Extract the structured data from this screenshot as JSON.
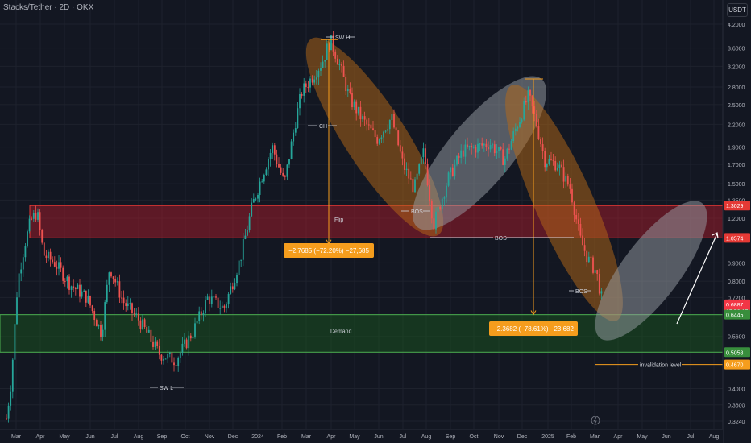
{
  "header": {
    "title": "Stacks/Tether · 2D · OKX",
    "unit": "USDT"
  },
  "colors": {
    "background": "#131722",
    "grid": "#1e222d",
    "candle_up": "#26a69a",
    "candle_down": "#ef5350",
    "supply_zone": "#b71c2c",
    "demand_zone": "#1b5e20",
    "orange": "#f59d1d",
    "label_green": "#388e3c",
    "label_red": "#e53935",
    "price_badge": "#f23645"
  },
  "chart_data": {
    "type": "candlestick",
    "x_ticks": [
      "Mar",
      "Apr",
      "May",
      "Jun",
      "Jul",
      "Aug",
      "Sep",
      "Oct",
      "Nov",
      "Dec",
      "2024",
      "Feb",
      "Mar",
      "Apr",
      "May",
      "Jun",
      "Jul",
      "Aug",
      "Sep",
      "Oct",
      "Nov",
      "Dec",
      "2025",
      "Feb",
      "Mar",
      "Apr",
      "May",
      "Jun",
      "Jul",
      "Aug"
    ],
    "y_ticks": [
      "4.2000",
      "3.6000",
      "3.2000",
      "2.8000",
      "2.5000",
      "2.2000",
      "1.9000",
      "1.7000",
      "1.5000",
      "1.3500",
      "1.2000",
      "0.9000",
      "0.8000",
      "0.7200",
      "0.5600",
      "0.4000",
      "0.3600",
      "0.3240"
    ],
    "y_scale": "log",
    "ylim": [
      0.31,
      4.4
    ],
    "price_labels": [
      {
        "text": "1.3029",
        "price": 1.3029,
        "color": "#e53935"
      },
      {
        "text": "1.0574",
        "price": 1.0574,
        "color": "#e53935"
      },
      {
        "text": "0.6887",
        "price": 0.6887,
        "color": "#f23645"
      },
      {
        "text": "17:56:17",
        "price": 0.66,
        "color": "#f23645"
      },
      {
        "text": "0.6445",
        "price": 0.6445,
        "color": "#388e3c"
      },
      {
        "text": "0.5058",
        "price": 0.5058,
        "color": "#388e3c"
      },
      {
        "text": "0.4670",
        "price": 0.467,
        "color": "#f59d1d"
      }
    ],
    "zones": [
      {
        "name": "supply",
        "label": "Flip",
        "top": 1.3029,
        "bottom": 1.0574
      },
      {
        "name": "demand",
        "label": "Demand",
        "top": 0.6445,
        "bottom": 0.5058
      }
    ],
    "annotations": {
      "swh": "SW H",
      "swl": "SW L",
      "ch": "CH",
      "bos_1": "BOS",
      "bos_2": "BOS",
      "bos_3": "BOS",
      "invalidation": "invalidation level",
      "measure_1": "−2.7685 (−72.20%) −27,685",
      "measure_2": "−2.3682 (−78.61%) −23,682"
    },
    "price_path": [
      {
        "t": 0,
        "p": 0.33
      },
      {
        "t": 6,
        "p": 0.42
      },
      {
        "t": 14,
        "p": 0.8
      },
      {
        "t": 22,
        "p": 1.0
      },
      {
        "t": 30,
        "p": 1.18
      },
      {
        "t": 38,
        "p": 1.25
      },
      {
        "t": 46,
        "p": 0.95
      },
      {
        "t": 60,
        "p": 0.9
      },
      {
        "t": 80,
        "p": 0.78
      },
      {
        "t": 100,
        "p": 0.72
      },
      {
        "t": 118,
        "p": 0.57
      },
      {
        "t": 128,
        "p": 0.88
      },
      {
        "t": 145,
        "p": 0.7
      },
      {
        "t": 165,
        "p": 0.62
      },
      {
        "t": 190,
        "p": 0.5
      },
      {
        "t": 210,
        "p": 0.48
      },
      {
        "t": 232,
        "p": 0.58
      },
      {
        "t": 250,
        "p": 0.72
      },
      {
        "t": 270,
        "p": 0.67
      },
      {
        "t": 290,
        "p": 0.92
      },
      {
        "t": 305,
        "p": 1.3
      },
      {
        "t": 318,
        "p": 1.6
      },
      {
        "t": 330,
        "p": 1.9
      },
      {
        "t": 345,
        "p": 1.5
      },
      {
        "t": 358,
        "p": 2.2
      },
      {
        "t": 366,
        "p": 2.7
      },
      {
        "t": 380,
        "p": 3.0
      },
      {
        "t": 392,
        "p": 3.3
      },
      {
        "t": 402,
        "p": 3.8
      },
      {
        "t": 412,
        "p": 3.3
      },
      {
        "t": 426,
        "p": 2.6
      },
      {
        "t": 440,
        "p": 2.3
      },
      {
        "t": 460,
        "p": 2.0
      },
      {
        "t": 478,
        "p": 2.3
      },
      {
        "t": 492,
        "p": 1.7
      },
      {
        "t": 506,
        "p": 1.45
      },
      {
        "t": 518,
        "p": 1.85
      },
      {
        "t": 530,
        "p": 1.15
      },
      {
        "t": 548,
        "p": 1.55
      },
      {
        "t": 566,
        "p": 1.85
      },
      {
        "t": 584,
        "p": 1.9
      },
      {
        "t": 600,
        "p": 1.95
      },
      {
        "t": 618,
        "p": 1.75
      },
      {
        "t": 634,
        "p": 2.2
      },
      {
        "t": 648,
        "p": 2.65
      },
      {
        "t": 658,
        "p": 2.2
      },
      {
        "t": 668,
        "p": 1.75
      },
      {
        "t": 684,
        "p": 1.7
      },
      {
        "t": 700,
        "p": 1.45
      },
      {
        "t": 712,
        "p": 1.05
      },
      {
        "t": 722,
        "p": 0.92
      },
      {
        "t": 732,
        "p": 0.85
      },
      {
        "t": 740,
        "p": 0.69
      }
    ]
  }
}
